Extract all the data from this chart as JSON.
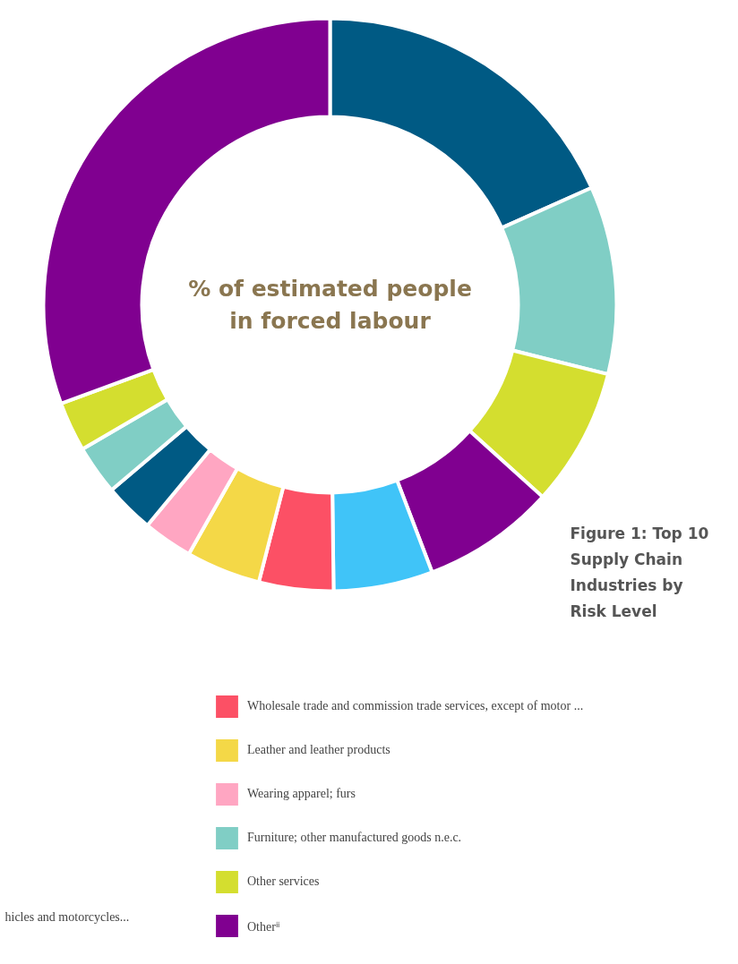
{
  "chart_data": {
    "type": "donut",
    "title": "Figure 1: Top 10 Supply Chain Industries by Risk Level",
    "subtitle": "% of estimated people in forced labour",
    "categories": [
      null,
      null,
      null,
      null,
      null,
      "Wholesale trade and commission trade services, except of motor ...",
      "Leather and leather products",
      "Wearing apparel; furs",
      null,
      "Furniture; other manufactured goods n.e.c.",
      "Other services",
      "Otherⁱⁱ"
    ],
    "values": [
      18.3,
      10.6,
      7.8,
      7.5,
      5.6,
      4.2,
      4.2,
      2.8,
      2.8,
      2.8,
      2.8,
      30.6
    ],
    "colors": [
      "#005a84",
      "#80cec5",
      "#d4de2f",
      "#800090",
      "#40c4f8",
      "#fc5065",
      "#f4d847",
      "#ffa6c2",
      "#005a84",
      "#80cec5",
      "#d4de2f",
      "#800090"
    ],
    "legend": "bottom",
    "annotations": [
      "hicles and motorcycles..."
    ]
  }
}
